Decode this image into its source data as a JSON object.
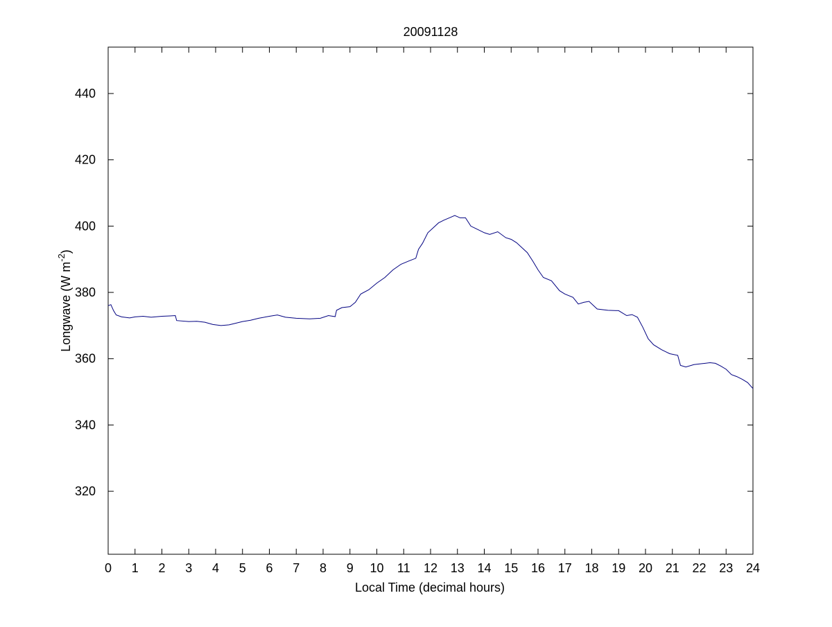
{
  "chart_data": {
    "type": "line",
    "title": "20091128",
    "xlabel": "Local Time (decimal hours)",
    "ylabel_main": "Longwave (W m",
    "ylabel_sup": "-2",
    "ylabel_close": ")",
    "xlim": [
      0,
      24
    ],
    "ylim": [
      301,
      454
    ],
    "xticks": [
      0,
      1,
      2,
      3,
      4,
      5,
      6,
      7,
      8,
      9,
      10,
      11,
      12,
      13,
      14,
      15,
      16,
      17,
      18,
      19,
      20,
      21,
      22,
      23,
      24
    ],
    "yticks": [
      320,
      340,
      360,
      380,
      400,
      420,
      440
    ],
    "grid": false,
    "line_color": "#000080",
    "series": [
      {
        "x": [
          0,
          0.1,
          0.2,
          0.3,
          0.5,
          0.8,
          1.0,
          1.3,
          1.6,
          2.0,
          2.3,
          2.5,
          2.55,
          3.0,
          3.3,
          3.6,
          3.9,
          4.2,
          4.5,
          5.0,
          5.3,
          5.6,
          6.0,
          6.3,
          6.6,
          7.0,
          7.5,
          7.9,
          8.2,
          8.45,
          8.5,
          8.7,
          9.0,
          9.2,
          9.4,
          9.7,
          10.0,
          10.3,
          10.6,
          10.9,
          11.2,
          11.45,
          11.55,
          11.7,
          11.9,
          12.1,
          12.3,
          12.5,
          12.7,
          12.9,
          13.1,
          13.3,
          13.5,
          13.7,
          14.0,
          14.2,
          14.5,
          14.8,
          15.0,
          15.2,
          15.4,
          15.6,
          15.8,
          16.0,
          16.2,
          16.5,
          16.8,
          17.0,
          17.3,
          17.5,
          17.7,
          17.9,
          18.2,
          18.6,
          19.0,
          19.3,
          19.5,
          19.7,
          19.9,
          20.1,
          20.3,
          20.6,
          20.9,
          21.2,
          21.3,
          21.5,
          21.8,
          22.1,
          22.4,
          22.6,
          22.8,
          23.0,
          23.2,
          23.4,
          23.6,
          23.8,
          24.0
        ],
        "y": [
          376,
          376.3,
          374.5,
          373.2,
          372.6,
          372.3,
          372.6,
          372.8,
          372.5,
          372.8,
          372.9,
          373.0,
          371.5,
          371.2,
          371.3,
          371.0,
          370.3,
          370.0,
          370.2,
          371.2,
          371.6,
          372.2,
          372.8,
          373.2,
          372.5,
          372.2,
          372.0,
          372.2,
          373.0,
          372.7,
          374.6,
          375.4,
          375.7,
          377.0,
          379.5,
          380.8,
          382.8,
          384.5,
          386.8,
          388.5,
          389.5,
          390.3,
          393.0,
          394.8,
          398.0,
          399.5,
          401.0,
          401.8,
          402.5,
          403.2,
          402.5,
          402.5,
          400.0,
          399.2,
          398.0,
          397.5,
          398.3,
          396.5,
          396.0,
          395.0,
          393.5,
          392.0,
          389.5,
          386.8,
          384.5,
          383.5,
          380.5,
          379.5,
          378.5,
          376.5,
          377.0,
          377.3,
          375.0,
          374.6,
          374.5,
          373.0,
          373.3,
          372.5,
          369.5,
          366.0,
          364.2,
          362.7,
          361.5,
          361.0,
          358.0,
          357.5,
          358.2,
          358.5,
          358.8,
          358.6,
          357.8,
          356.8,
          355.2,
          354.6,
          353.8,
          352.8,
          351.0
        ]
      }
    ]
  }
}
